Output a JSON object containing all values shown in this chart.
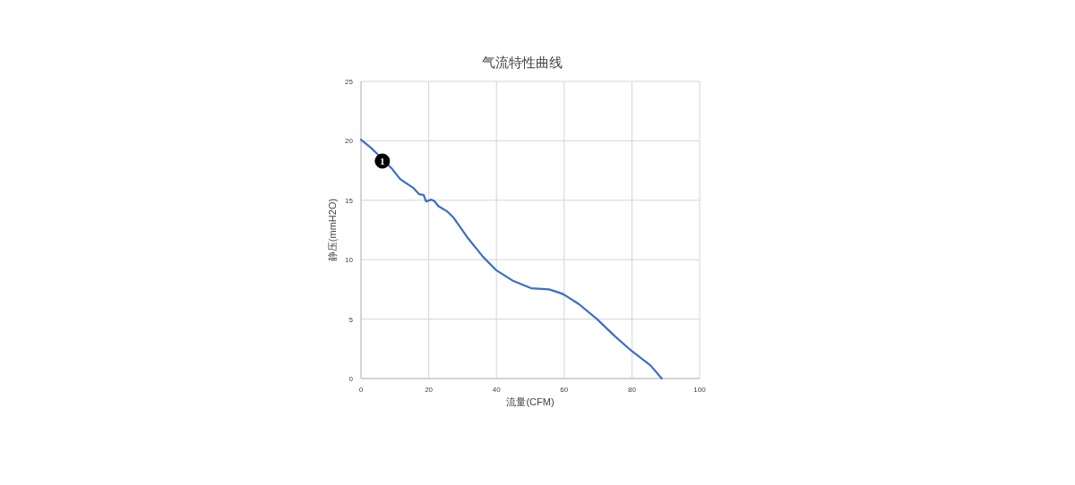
{
  "chart_data": {
    "type": "line",
    "title": "气流特性曲线",
    "xlabel": "流量(CFM)",
    "ylabel": "静压(mmH2O)",
    "x": [
      0,
      3,
      5,
      9,
      11.5,
      13,
      15.4,
      17.2,
      18.5,
      19.2,
      20.7,
      21.6,
      22.9,
      25.5,
      27.3,
      31.6,
      36,
      40,
      45,
      50.2,
      55.5,
      58.8,
      60,
      64.4,
      69.7,
      75,
      80,
      85.5,
      88.8
    ],
    "series": [
      {
        "color": "#3a6fc4",
        "values": [
          20.1,
          19.4,
          18.85,
          17.7,
          16.8,
          16.5,
          16.05,
          15.5,
          15.45,
          14.9,
          15.05,
          14.95,
          14.5,
          14.05,
          13.55,
          11.8,
          10.25,
          9.1,
          8.2,
          7.6,
          7.5,
          7.2,
          7.05,
          6.25,
          5.0,
          3.55,
          2.3,
          1.1,
          0
        ]
      }
    ],
    "xlim": [
      0,
      100
    ],
    "xticks": [
      0,
      20,
      40,
      60,
      80,
      100
    ],
    "ylim": [
      0,
      25
    ],
    "yticks": [
      0,
      5,
      10,
      15,
      20,
      25
    ],
    "grid": true,
    "line_style": "solid",
    "annotations": [
      {
        "text": "1",
        "x": 6.3,
        "y": 18.3
      }
    ]
  }
}
